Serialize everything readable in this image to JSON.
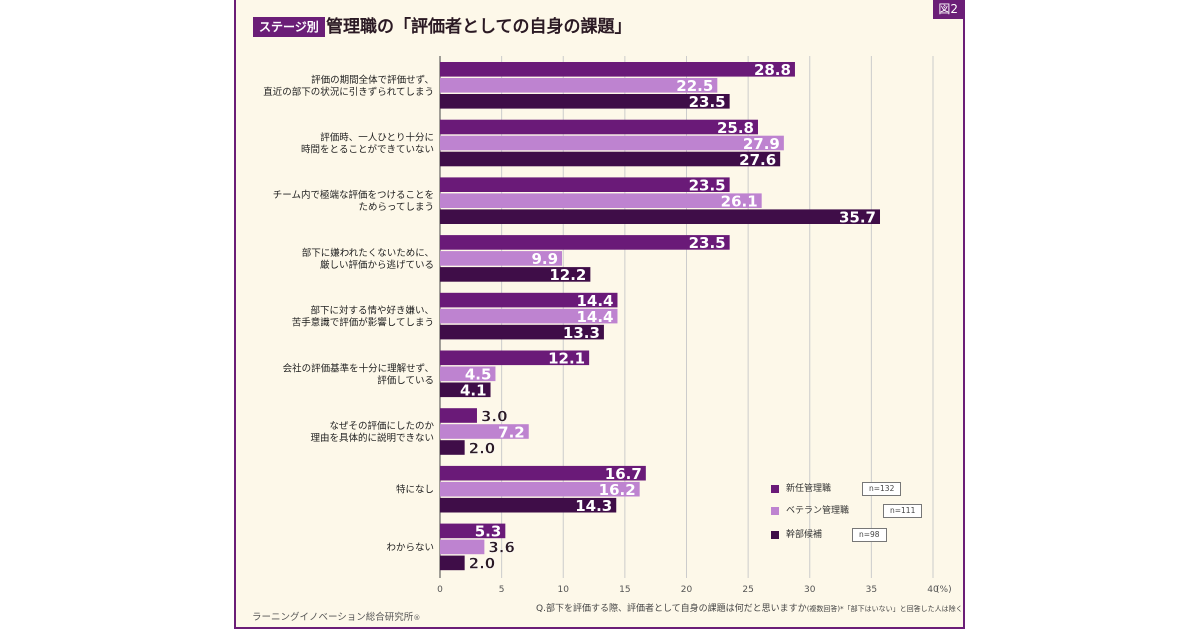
{
  "figure_tag": "図2",
  "badge": "ステージ別",
  "title": "管理職の「評価者としての自身の課題」",
  "question_main": "Q.部下を評価する際、評価者として自身の課題は何だと思いますか",
  "question_note": "(複数回答)*「部下はいない」と回答した人は除く",
  "source": "ラーニングイノベーション総合研究所",
  "source_mark": "®",
  "colors": {
    "series": [
      "#6a1a78",
      "#be83d0",
      "#3f0d48"
    ],
    "grid": "#cccccc",
    "axis": "#444444"
  },
  "legend": [
    {
      "label": "新任管理職",
      "n": "n=132"
    },
    {
      "label": "ベテラン管理職",
      "n": "n=111"
    },
    {
      "label": "幹部候補",
      "n": "n=98"
    }
  ],
  "chart_data": {
    "type": "bar",
    "orientation": "horizontal",
    "categories": [
      [
        "評価の期間全体で評価せず、",
        "直近の部下の状況に引きずられてしまう"
      ],
      [
        "評価時、一人ひとり十分に",
        "時間をとることができていない"
      ],
      [
        "チーム内で極端な評価をつけることを",
        "ためらってしまう"
      ],
      [
        "部下に嫌われたくないために、",
        "厳しい評価から逃げている"
      ],
      [
        "部下に対する情や好き嫌い、",
        "苦手意識で評価が影響してしまう"
      ],
      [
        "会社の評価基準を十分に理解せず、",
        "評価している"
      ],
      [
        "なぜその評価にしたのか",
        "理由を具体的に説明できない"
      ],
      [
        "特になし"
      ],
      [
        "わからない"
      ]
    ],
    "series": [
      {
        "name": "新任管理職",
        "values": [
          28.8,
          25.8,
          23.5,
          23.5,
          14.4,
          12.1,
          3.0,
          16.7,
          5.3
        ]
      },
      {
        "name": "ベテラン管理職",
        "values": [
          22.5,
          27.9,
          26.1,
          9.9,
          14.4,
          4.5,
          7.2,
          16.2,
          3.6
        ]
      },
      {
        "name": "幹部候補",
        "values": [
          23.5,
          27.6,
          35.7,
          12.2,
          13.3,
          4.1,
          2.0,
          14.3,
          2.0
        ]
      }
    ],
    "value_labels": [
      [
        "28.8",
        "25.8",
        "23.5",
        "23.5",
        "14.4",
        "12.1",
        "3.0",
        "16.7",
        "5.3"
      ],
      [
        "22.5",
        "27.9",
        "26.1",
        "9.9",
        "14.4",
        "4.5",
        "7.2",
        "16.2",
        "3.6"
      ],
      [
        "23.5",
        "27.6",
        "35.7",
        "12.2",
        "13.3",
        "4.1",
        "2.0",
        "14.3",
        "2.0"
      ]
    ],
    "x_ticks": [
      "0",
      "5",
      "10",
      "15",
      "20",
      "25",
      "30",
      "35",
      "40"
    ],
    "x_unit": "(%)",
    "xlim": [
      0,
      40
    ],
    "grid": true,
    "legend_position": "bottom-right"
  }
}
